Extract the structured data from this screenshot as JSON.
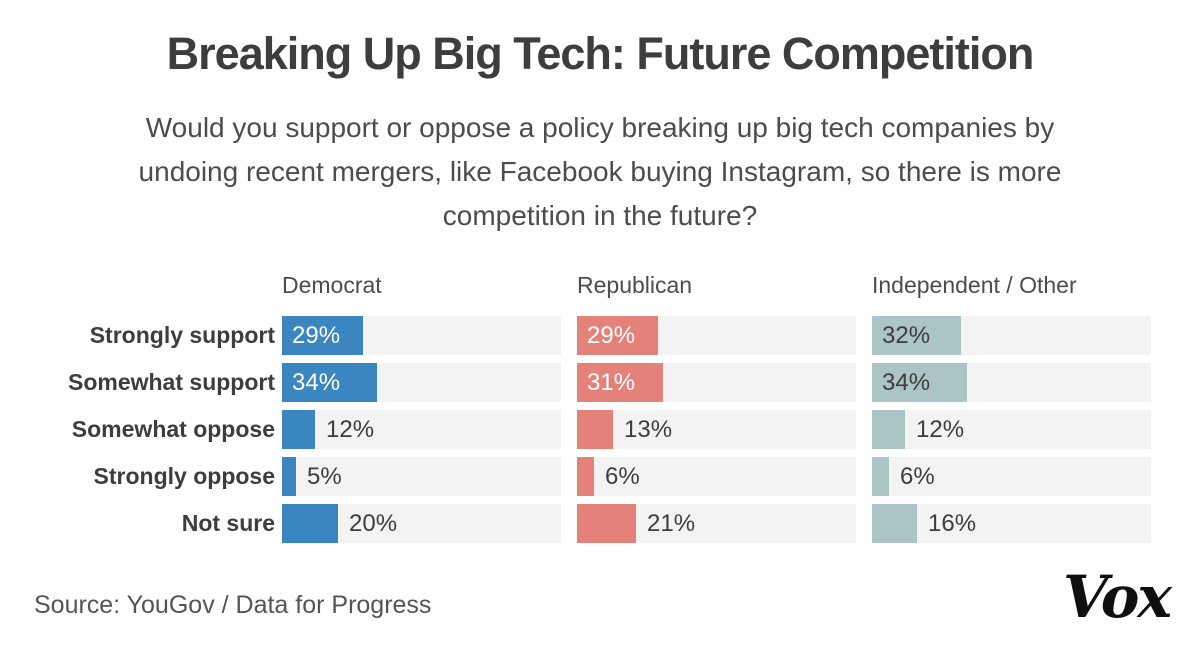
{
  "chart_data": {
    "type": "bar",
    "orientation": "horizontal",
    "title": "Breaking Up Big Tech: Future Competition",
    "subtitle_lines": [
      "Would you support or oppose a policy breaking up big tech companies by",
      "undoing recent mergers, like Facebook buying Instagram, so there is more",
      "competition in the future?"
    ],
    "categories": [
      "Strongly support",
      "Somewhat support",
      "Somewhat oppose",
      "Strongly oppose",
      "Not sure"
    ],
    "series": [
      {
        "name": "Democrat",
        "color": "#3b86c0",
        "inside_label_color": "#ffffff",
        "values": [
          29,
          34,
          12,
          5,
          20
        ]
      },
      {
        "name": "Republican",
        "color": "#e4827a",
        "inside_label_color": "#ffffff",
        "values": [
          29,
          31,
          13,
          6,
          21
        ]
      },
      {
        "name": "Independent / Other",
        "color": "#abc4c6",
        "inside_label_color": "#3d3d3d",
        "values": [
          32,
          34,
          12,
          6,
          16
        ]
      }
    ],
    "value_suffix": "%",
    "xlim": [
      0,
      100
    ],
    "grid": false,
    "legend_position": "column-headers",
    "track_color": "#f3f3f3",
    "outside_label_color": "#3d3d3d",
    "inside_label_threshold": 25
  },
  "footer": {
    "source": "Source: YouGov / Data for Progress",
    "brand": "Vox"
  }
}
